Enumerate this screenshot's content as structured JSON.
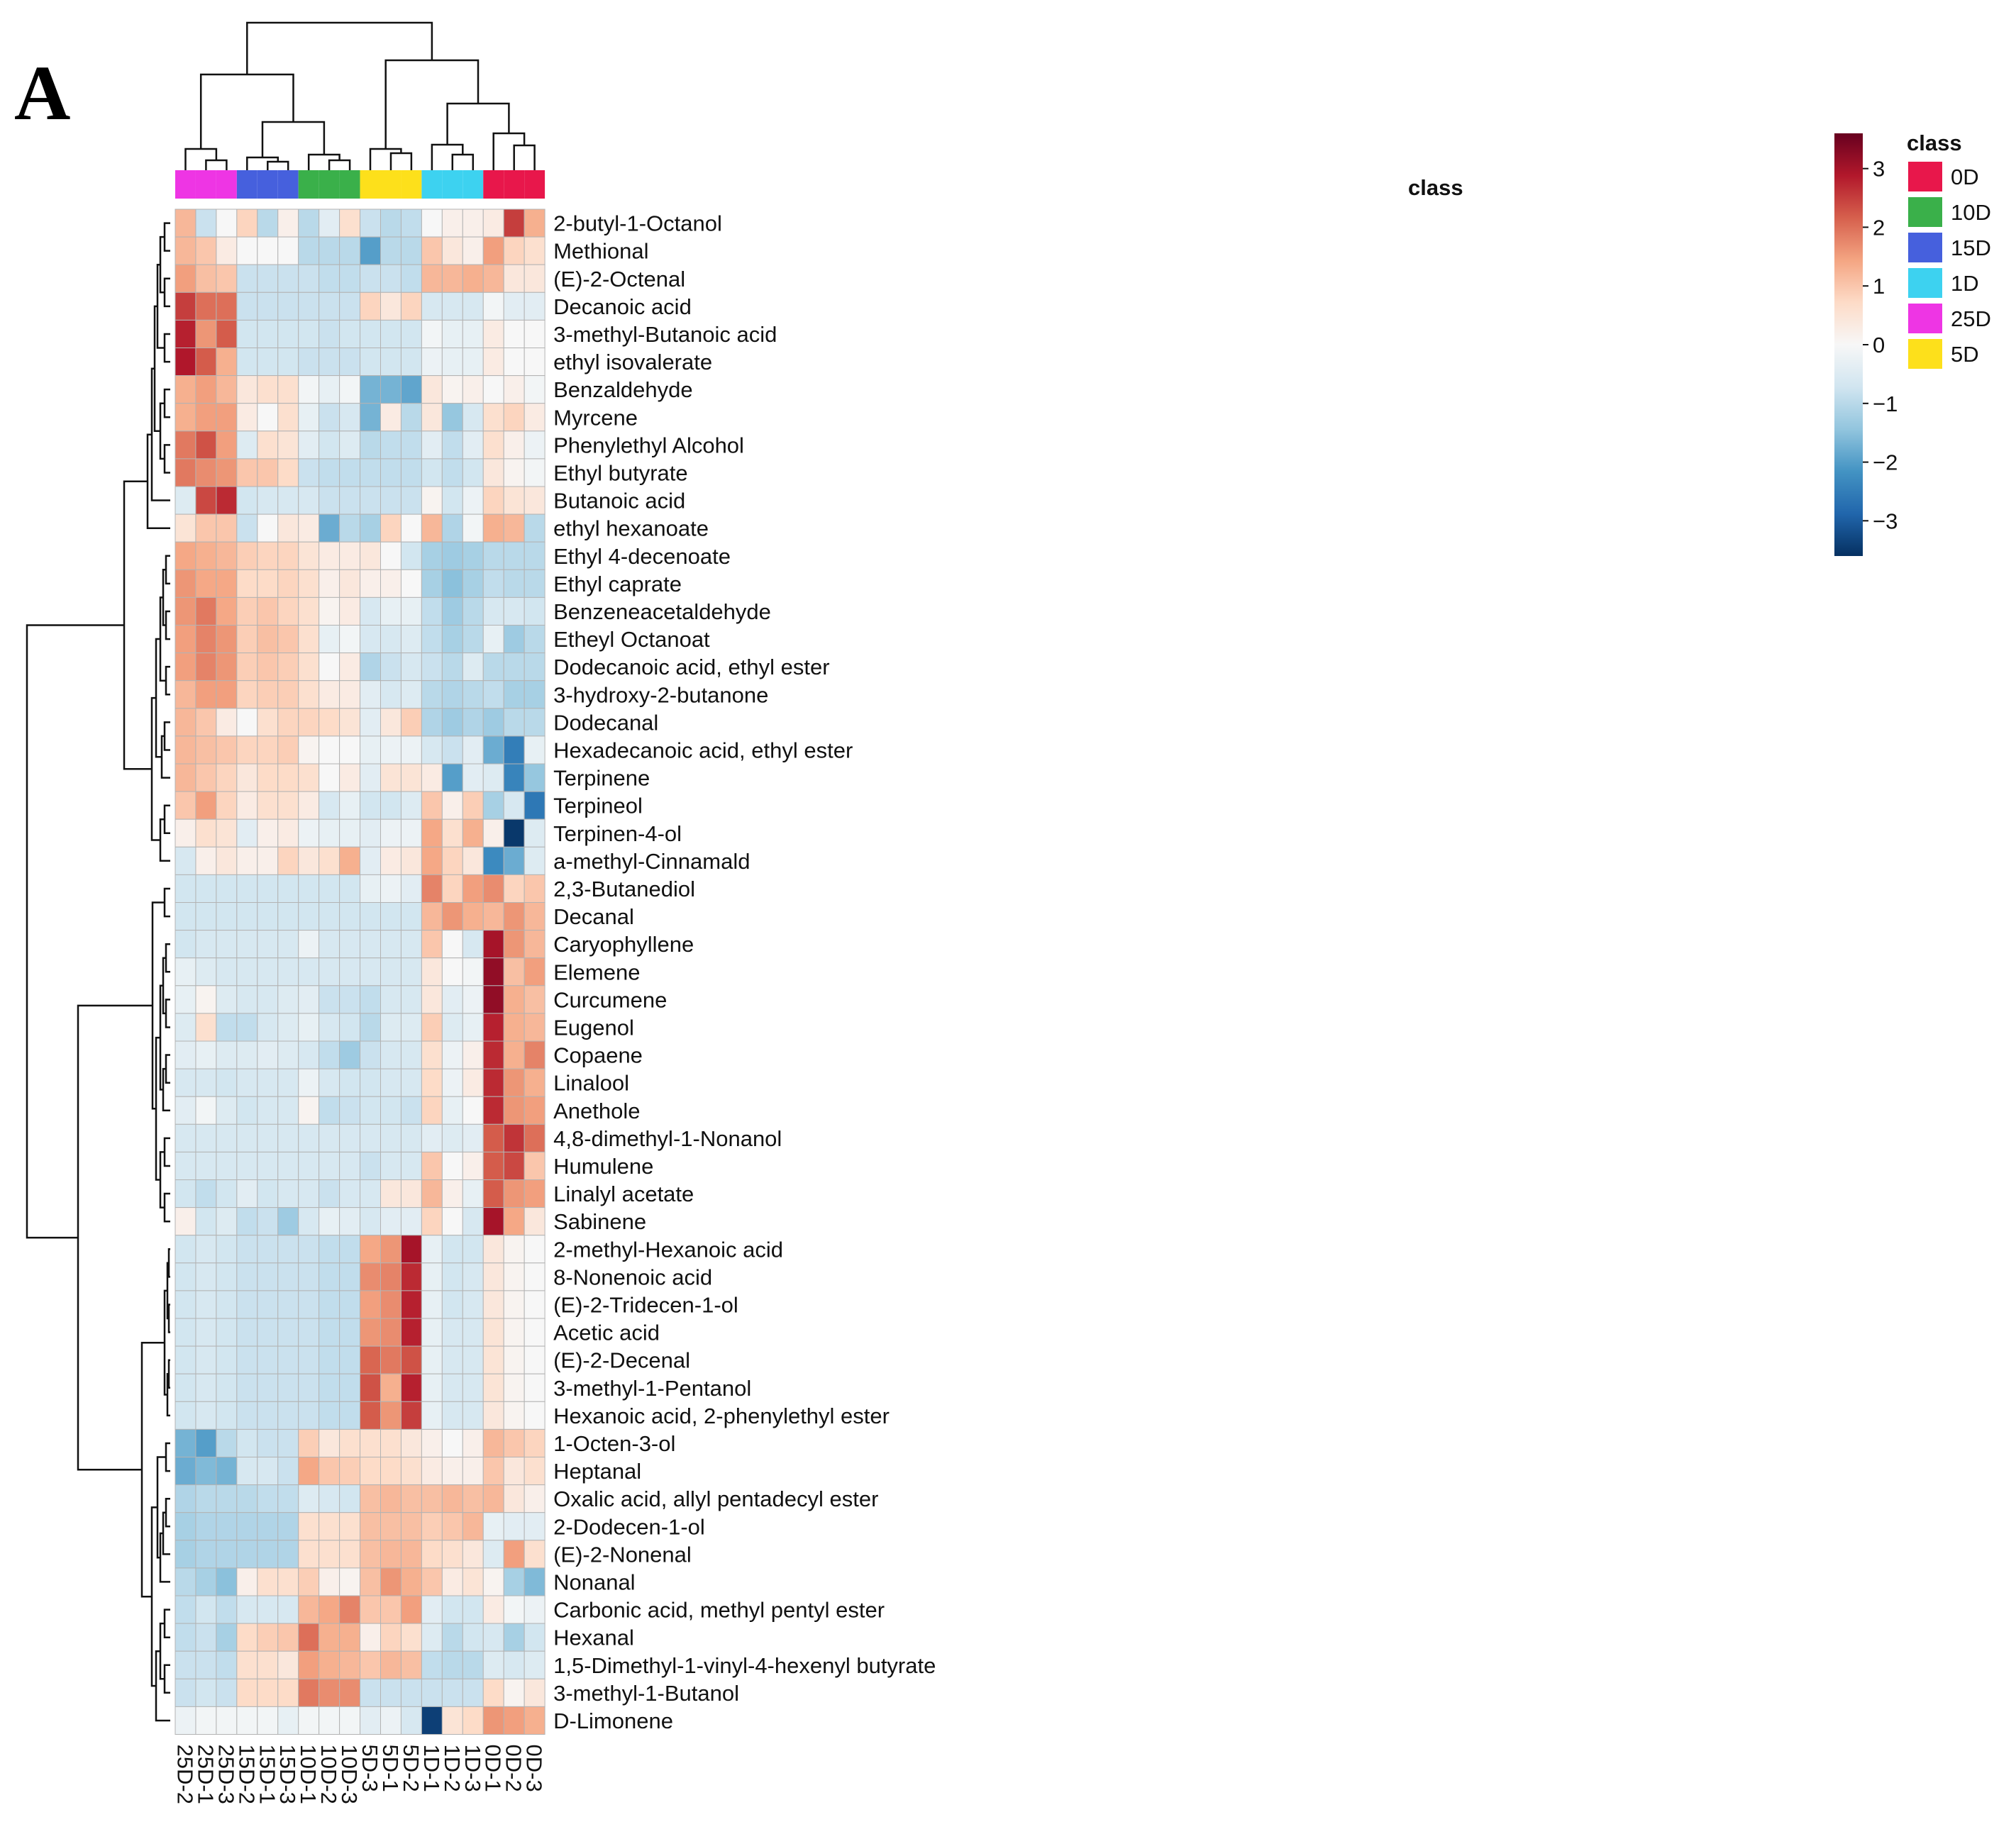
{
  "panel_label": "A",
  "chart_data": {
    "type": "heatmap",
    "title": "",
    "xlabel": "",
    "ylabel": "",
    "annotation_title": "class",
    "columns": [
      "25D-2",
      "25D-1",
      "25D-3",
      "15D-2",
      "15D-1",
      "15D-3",
      "10D-1",
      "10D-2",
      "10D-3",
      "5D-3",
      "5D-1",
      "5D-2",
      "1D-1",
      "1D-2",
      "1D-3",
      "0D-1",
      "0D-2",
      "0D-3"
    ],
    "column_class": [
      "25D",
      "25D",
      "25D",
      "15D",
      "15D",
      "15D",
      "10D",
      "10D",
      "10D",
      "5D",
      "5D",
      "5D",
      "1D",
      "1D",
      "1D",
      "0D",
      "0D",
      "0D"
    ],
    "rows": [
      "2-butyl-1-Octanol",
      "Methional",
      "(E)-2-Octenal",
      "Decanoic acid",
      "3-methyl-Butanoic acid",
      "ethyl isovalerate",
      "Benzaldehyde",
      "Myrcene",
      "Phenylethyl Alcohol",
      "Ethyl butyrate",
      "Butanoic acid",
      "ethyl hexanoate",
      "Ethyl 4-decenoate",
      "Ethyl caprate",
      "Benzeneacetaldehyde",
      "Etheyl Octanoat",
      "Dodecanoic acid, ethyl ester",
      "3-hydroxy-2-butanone",
      "Dodecanal",
      "Hexadecanoic acid, ethyl ester",
      "Terpinene",
      "Terpineol",
      "Terpinen-4-ol",
      "a-methyl-Cinnamald",
      "2,3-Butanediol",
      "Decanal",
      "Caryophyllene",
      "Elemene",
      "Curcumene",
      "Eugenol",
      "Copaene",
      "Linalool",
      "Anethole",
      "4,8-dimethyl-1-Nonanol",
      "Humulene",
      "Linalyl acetate",
      "Sabinene",
      "2-methyl-Hexanoic acid",
      "8-Nonenoic acid",
      "(E)-2-Tridecen-1-ol",
      "Acetic acid",
      "(E)-2-Decenal",
      "3-methyl-1-Pentanol",
      "Hexanoic acid, 2-phenylethyl ester",
      "1-Octen-3-ol",
      "Heptanal",
      "Oxalic acid, allyl pentadecyl ester",
      "2-Dodecen-1-ol",
      "(E)-2-Nonenal",
      "Nonanal",
      "Carbonic acid, methyl pentyl ester",
      "Hexanal",
      "1,5-Dimethyl-1-vinyl-4-hexenyl butyrate",
      "3-methyl-1-Butanol",
      "D-Limonene"
    ],
    "values": [
      [
        1.2,
        -0.8,
        0.0,
        0.8,
        -1.0,
        0.2,
        -1.0,
        -0.4,
        0.6,
        -0.8,
        -1.0,
        -0.9,
        0.0,
        0.2,
        0.2,
        0.3,
        2.5,
        1.3
      ],
      [
        1.2,
        1.0,
        0.3,
        0.0,
        0.0,
        0.0,
        -1.0,
        -1.0,
        -1.0,
        -2.0,
        -1.0,
        -1.0,
        1.0,
        0.4,
        0.2,
        1.5,
        0.8,
        0.6
      ],
      [
        1.5,
        1.1,
        1.0,
        -0.8,
        -0.8,
        -0.8,
        -0.8,
        -0.9,
        -0.9,
        -0.8,
        -0.8,
        -0.9,
        1.2,
        1.2,
        1.3,
        1.2,
        0.4,
        0.4
      ],
      [
        2.5,
        2.0,
        2.0,
        -0.8,
        -0.8,
        -0.8,
        -0.8,
        -0.8,
        -0.8,
        0.8,
        0.4,
        0.8,
        -0.6,
        -0.6,
        -0.6,
        -0.1,
        -0.4,
        -0.4
      ],
      [
        2.8,
        1.6,
        2.2,
        -0.7,
        -0.7,
        -0.7,
        -0.7,
        -0.8,
        -0.7,
        -0.7,
        -0.7,
        -0.7,
        -0.1,
        -0.3,
        -0.3,
        0.3,
        0.0,
        0.0
      ],
      [
        2.9,
        2.2,
        1.3,
        -0.7,
        -0.7,
        -0.7,
        -0.8,
        -0.8,
        -0.8,
        -0.7,
        -0.7,
        -0.7,
        -0.2,
        -0.3,
        -0.3,
        0.3,
        0.0,
        0.0
      ],
      [
        1.3,
        1.5,
        1.2,
        0.4,
        0.6,
        0.6,
        -0.1,
        -0.3,
        -0.1,
        -1.7,
        -1.7,
        -1.9,
        0.4,
        0.1,
        0.2,
        0.0,
        0.2,
        -0.1
      ],
      [
        1.3,
        1.5,
        1.5,
        0.3,
        0.0,
        0.6,
        -0.3,
        -0.8,
        -0.6,
        -1.7,
        0.3,
        -1.0,
        0.4,
        -1.4,
        -0.6,
        0.6,
        0.8,
        0.3
      ],
      [
        1.9,
        2.3,
        1.5,
        -0.5,
        0.6,
        0.5,
        -0.4,
        -0.7,
        -0.5,
        -1.0,
        -0.9,
        -0.9,
        -0.4,
        -0.9,
        -0.4,
        0.6,
        0.2,
        -0.2
      ],
      [
        1.9,
        1.7,
        1.6,
        1.0,
        1.0,
        0.7,
        -0.8,
        -0.9,
        -0.9,
        -0.9,
        -0.9,
        -0.9,
        -0.7,
        -0.9,
        -0.7,
        0.4,
        0.1,
        -0.1
      ],
      [
        -0.5,
        2.4,
        2.7,
        -0.7,
        -0.6,
        -0.6,
        -0.6,
        -0.8,
        -0.8,
        -0.8,
        -0.8,
        -0.8,
        0.1,
        -0.7,
        -0.2,
        0.8,
        0.5,
        0.4
      ],
      [
        0.5,
        1.0,
        1.0,
        -0.8,
        0.0,
        0.4,
        0.3,
        -1.8,
        -1.0,
        -1.2,
        0.8,
        0.0,
        1.2,
        -1.1,
        -0.1,
        1.3,
        1.2,
        -1.0
      ],
      [
        1.4,
        1.3,
        1.2,
        0.9,
        0.8,
        0.8,
        0.5,
        0.3,
        0.3,
        0.4,
        0.0,
        -0.7,
        -1.2,
        -1.3,
        -1.2,
        -1.0,
        -1.0,
        -1.0
      ],
      [
        1.6,
        1.4,
        1.4,
        0.7,
        0.7,
        0.8,
        0.6,
        0.2,
        0.4,
        0.2,
        0.2,
        0.0,
        -1.2,
        -1.5,
        -1.2,
        -0.9,
        -1.0,
        -1.0
      ],
      [
        1.6,
        1.9,
        1.4,
        0.9,
        1.0,
        0.8,
        0.6,
        0.1,
        0.3,
        -0.6,
        -0.3,
        -0.3,
        -0.9,
        -1.3,
        -1.0,
        -0.6,
        -0.6,
        -0.7
      ],
      [
        1.5,
        1.8,
        1.6,
        0.9,
        1.1,
        1.0,
        0.6,
        -0.3,
        -0.1,
        -0.6,
        -0.6,
        -0.5,
        -0.9,
        -1.2,
        -1.0,
        -0.3,
        -1.3,
        -1.0
      ],
      [
        1.5,
        1.8,
        1.6,
        0.9,
        1.0,
        0.9,
        0.6,
        0.0,
        0.3,
        -1.1,
        -0.8,
        -0.6,
        -0.8,
        -1.0,
        -0.5,
        -1.0,
        -1.0,
        -1.0
      ],
      [
        1.2,
        1.5,
        1.5,
        0.8,
        0.9,
        0.9,
        0.6,
        0.3,
        0.3,
        -0.4,
        -0.6,
        -0.5,
        -1.0,
        -1.1,
        -1.0,
        -0.9,
        -1.2,
        -1.2
      ],
      [
        1.2,
        1.0,
        0.3,
        0.0,
        0.6,
        0.8,
        0.8,
        0.7,
        0.5,
        -0.4,
        0.4,
        0.9,
        -1.1,
        -1.3,
        -1.1,
        -1.3,
        -1.0,
        -1.0
      ],
      [
        1.2,
        1.1,
        1.0,
        0.8,
        0.8,
        0.9,
        0.1,
        0.0,
        0.0,
        -0.3,
        -0.2,
        -0.2,
        -0.6,
        -0.8,
        -0.4,
        -1.8,
        -2.5,
        -0.3
      ],
      [
        1.2,
        1.0,
        0.8,
        0.4,
        0.7,
        0.7,
        0.6,
        0.0,
        0.3,
        -0.4,
        0.5,
        0.5,
        0.3,
        -2.0,
        -0.4,
        -0.5,
        -2.4,
        -1.4
      ],
      [
        1.0,
        1.5,
        0.8,
        0.3,
        0.6,
        0.6,
        0.3,
        -0.6,
        -0.3,
        -0.7,
        -0.7,
        -0.5,
        1.0,
        0.2,
        0.9,
        -1.2,
        -0.6,
        -2.6
      ],
      [
        0.2,
        0.6,
        0.5,
        -0.4,
        0.2,
        0.3,
        -0.2,
        -0.3,
        -0.3,
        -0.4,
        -0.2,
        -0.2,
        1.4,
        0.6,
        1.3,
        0.2,
        -3.5,
        -0.5
      ],
      [
        -0.6,
        0.2,
        0.4,
        0.2,
        0.2,
        0.8,
        0.4,
        0.6,
        1.3,
        -0.4,
        0.3,
        0.4,
        1.4,
        0.8,
        0.4,
        -2.3,
        -1.8,
        -0.5
      ],
      [
        -0.7,
        -0.7,
        -0.7,
        -0.7,
        -0.7,
        -0.7,
        -0.7,
        -0.7,
        -0.7,
        -0.3,
        -0.2,
        -0.4,
        1.8,
        0.8,
        1.5,
        1.7,
        0.8,
        1.0
      ],
      [
        -0.7,
        -0.7,
        -0.7,
        -0.7,
        -0.7,
        -0.7,
        -0.7,
        -0.7,
        -0.7,
        -0.7,
        -0.7,
        -0.7,
        1.2,
        1.6,
        1.3,
        1.2,
        1.6,
        1.2
      ],
      [
        -0.7,
        -0.6,
        -0.6,
        -0.6,
        -0.6,
        -0.6,
        -0.2,
        -0.6,
        -0.6,
        -0.6,
        -0.6,
        -0.6,
        1.0,
        0.0,
        -0.6,
        3.0,
        1.6,
        1.2
      ],
      [
        -0.3,
        -0.5,
        -0.6,
        -0.6,
        -0.6,
        -0.6,
        -0.6,
        -0.6,
        -0.6,
        -0.6,
        -0.6,
        -0.6,
        0.4,
        0.0,
        -0.1,
        3.2,
        1.1,
        1.5
      ],
      [
        -0.3,
        0.1,
        -0.5,
        -0.6,
        -0.6,
        -0.5,
        -0.4,
        -0.8,
        -0.8,
        -0.9,
        -0.6,
        -0.6,
        0.4,
        -0.4,
        -0.2,
        3.2,
        1.3,
        1.1
      ],
      [
        -0.5,
        0.6,
        -0.9,
        -0.9,
        -0.6,
        -0.5,
        -0.3,
        -0.6,
        -0.7,
        -1.0,
        -0.5,
        -0.5,
        0.9,
        -0.5,
        -0.3,
        2.8,
        1.3,
        1.2
      ],
      [
        -0.4,
        -0.3,
        -0.5,
        -0.5,
        -0.4,
        -0.5,
        -0.6,
        -0.9,
        -1.3,
        -0.8,
        -0.6,
        -0.6,
        0.6,
        -0.2,
        0.2,
        2.7,
        1.3,
        1.8
      ],
      [
        -0.6,
        -0.6,
        -0.7,
        -0.6,
        -0.6,
        -0.6,
        -0.2,
        -0.6,
        -0.7,
        -0.7,
        -0.6,
        -0.6,
        0.7,
        -0.2,
        0.3,
        2.7,
        1.6,
        1.3
      ],
      [
        -0.4,
        -0.1,
        -0.5,
        -0.7,
        -0.6,
        -0.6,
        0.1,
        -0.9,
        -0.8,
        -0.7,
        -0.7,
        -0.8,
        0.8,
        -0.3,
        0.0,
        2.7,
        1.6,
        1.5
      ],
      [
        -0.6,
        -0.6,
        -0.6,
        -0.6,
        -0.6,
        -0.6,
        -0.6,
        -0.6,
        -0.6,
        -0.6,
        -0.6,
        -0.6,
        -0.4,
        -0.5,
        -0.4,
        2.2,
        2.6,
        2.0
      ],
      [
        -0.6,
        -0.6,
        -0.6,
        -0.6,
        -0.6,
        -0.6,
        -0.6,
        -0.6,
        -0.6,
        -0.8,
        -0.6,
        -0.6,
        1.0,
        0.0,
        0.2,
        2.2,
        2.4,
        1.0
      ],
      [
        -0.7,
        -0.9,
        -0.7,
        -0.4,
        -0.7,
        -0.6,
        -0.6,
        -0.8,
        -0.6,
        -0.6,
        0.4,
        0.4,
        1.2,
        0.2,
        -0.3,
        2.2,
        1.6,
        1.5
      ],
      [
        0.2,
        -0.7,
        -0.5,
        -0.9,
        -0.8,
        -1.3,
        -0.6,
        -0.3,
        -0.4,
        -0.6,
        -0.4,
        -0.4,
        0.8,
        0.0,
        -0.6,
        3.0,
        1.4,
        0.4
      ],
      [
        -0.7,
        -0.6,
        -0.7,
        -0.8,
        -0.8,
        -0.8,
        -0.8,
        -0.9,
        -0.9,
        1.4,
        1.6,
        3.0,
        -0.3,
        -0.7,
        -0.7,
        0.4,
        0.1,
        0.0
      ],
      [
        -0.7,
        -0.6,
        -0.7,
        -0.8,
        -0.8,
        -0.8,
        -0.8,
        -0.9,
        -0.9,
        1.7,
        1.8,
        2.7,
        -0.3,
        -0.7,
        -0.6,
        0.4,
        0.1,
        0.0
      ],
      [
        -0.7,
        -0.6,
        -0.7,
        -0.8,
        -0.8,
        -0.8,
        -0.8,
        -0.9,
        -0.9,
        1.5,
        1.7,
        2.8,
        -0.3,
        -0.7,
        -0.6,
        0.4,
        0.1,
        0.0
      ],
      [
        -0.7,
        -0.6,
        -0.7,
        -0.8,
        -0.8,
        -0.8,
        -0.8,
        -0.9,
        -0.9,
        1.6,
        1.7,
        2.8,
        -0.3,
        -0.6,
        -0.6,
        0.5,
        0.1,
        0.0
      ],
      [
        -0.7,
        -0.6,
        -0.7,
        -0.8,
        -0.8,
        -0.8,
        -0.8,
        -0.9,
        -0.9,
        2.1,
        1.9,
        2.3,
        -0.3,
        -0.6,
        -0.6,
        0.5,
        0.1,
        0.0
      ],
      [
        -0.7,
        -0.6,
        -0.7,
        -0.8,
        -0.8,
        -0.8,
        -0.8,
        -0.9,
        -0.9,
        2.3,
        1.3,
        2.8,
        -0.3,
        -0.6,
        -0.6,
        0.5,
        0.1,
        0.0
      ],
      [
        -0.7,
        -0.6,
        -0.7,
        -0.8,
        -0.8,
        -0.8,
        -0.8,
        -0.9,
        -0.9,
        2.2,
        1.6,
        2.5,
        -0.3,
        -0.6,
        -0.6,
        0.4,
        0.1,
        0.0
      ],
      [
        -1.7,
        -2.0,
        -1.0,
        -0.7,
        -0.8,
        -0.8,
        0.9,
        0.4,
        0.6,
        0.6,
        0.6,
        0.4,
        0.2,
        0.0,
        0.2,
        1.2,
        1.0,
        0.8
      ],
      [
        -1.8,
        -1.6,
        -1.7,
        -0.6,
        -0.6,
        -0.8,
        1.4,
        1.0,
        0.9,
        0.7,
        0.7,
        0.6,
        0.3,
        0.2,
        0.2,
        1.0,
        0.4,
        0.6
      ],
      [
        -1.1,
        -1.0,
        -1.0,
        -1.0,
        -0.9,
        -0.9,
        -0.5,
        -0.6,
        -0.7,
        1.1,
        1.2,
        1.1,
        1.1,
        1.2,
        1.1,
        1.2,
        0.4,
        0.2
      ],
      [
        -1.2,
        -1.1,
        -1.1,
        -1.1,
        -1.1,
        -1.1,
        0.6,
        0.6,
        0.6,
        1.1,
        1.1,
        1.1,
        0.9,
        1.0,
        1.2,
        -0.3,
        -0.4,
        -0.4
      ],
      [
        -1.2,
        -1.1,
        -1.1,
        -1.1,
        -1.1,
        -1.1,
        0.6,
        0.6,
        0.6,
        1.1,
        1.2,
        1.2,
        0.7,
        0.6,
        0.4,
        -0.5,
        1.5,
        0.6
      ],
      [
        -1.0,
        -1.2,
        -1.5,
        0.2,
        0.6,
        0.6,
        0.9,
        0.2,
        0.1,
        1.1,
        1.6,
        1.3,
        1.0,
        0.3,
        0.5,
        0.1,
        -1.2,
        -1.6
      ],
      [
        -0.9,
        -0.7,
        -0.9,
        -0.6,
        -0.6,
        -0.6,
        1.2,
        1.4,
        1.8,
        1.0,
        1.0,
        1.5,
        -0.4,
        -0.7,
        -0.7,
        0.3,
        -0.1,
        -0.2
      ],
      [
        -0.9,
        -0.8,
        -1.2,
        0.7,
        0.9,
        1.0,
        2.0,
        1.3,
        1.3,
        0.2,
        0.8,
        0.6,
        -0.5,
        -1.0,
        -0.7,
        -0.6,
        -1.2,
        -0.7
      ],
      [
        -0.8,
        -0.8,
        -0.9,
        0.6,
        0.6,
        0.4,
        1.5,
        1.3,
        1.2,
        1.0,
        1.2,
        1.1,
        -0.9,
        -1.0,
        -1.0,
        -0.5,
        -0.6,
        -0.5
      ],
      [
        -0.8,
        -0.7,
        -0.8,
        0.7,
        0.7,
        0.7,
        1.9,
        1.7,
        1.7,
        -0.8,
        -0.8,
        -0.8,
        -0.8,
        -0.8,
        -0.8,
        0.7,
        0.1,
        0.4
      ],
      [
        -0.2,
        -0.1,
        -0.1,
        -0.1,
        -0.1,
        -0.3,
        -0.1,
        -0.1,
        -0.1,
        -0.4,
        -0.2,
        -0.6,
        -3.4,
        0.5,
        0.7,
        1.6,
        1.5,
        1.3
      ]
    ],
    "color_scale": {
      "ticks": [
        3,
        2,
        1,
        0,
        -1,
        -2,
        -3
      ],
      "range": [
        -3.6,
        3.6
      ],
      "stops": [
        "#053061",
        "#2166ac",
        "#4393c3",
        "#92c5de",
        "#d1e5f0",
        "#f7f7f7",
        "#fddbc7",
        "#f4a582",
        "#d6604d",
        "#b2182b",
        "#67001f"
      ]
    },
    "legend": {
      "title": "class",
      "placement": "top-right",
      "entries": [
        {
          "label": "0D",
          "color": "#e8174b"
        },
        {
          "label": "10D",
          "color": "#3ab04a"
        },
        {
          "label": "15D",
          "color": "#4660dd"
        },
        {
          "label": "1D",
          "color": "#3dd2f0"
        },
        {
          "label": "25D",
          "color": "#ee35e4"
        },
        {
          "label": "5D",
          "color": "#fde01b"
        }
      ]
    },
    "row_dendrogram": true,
    "column_dendrogram": true
  }
}
